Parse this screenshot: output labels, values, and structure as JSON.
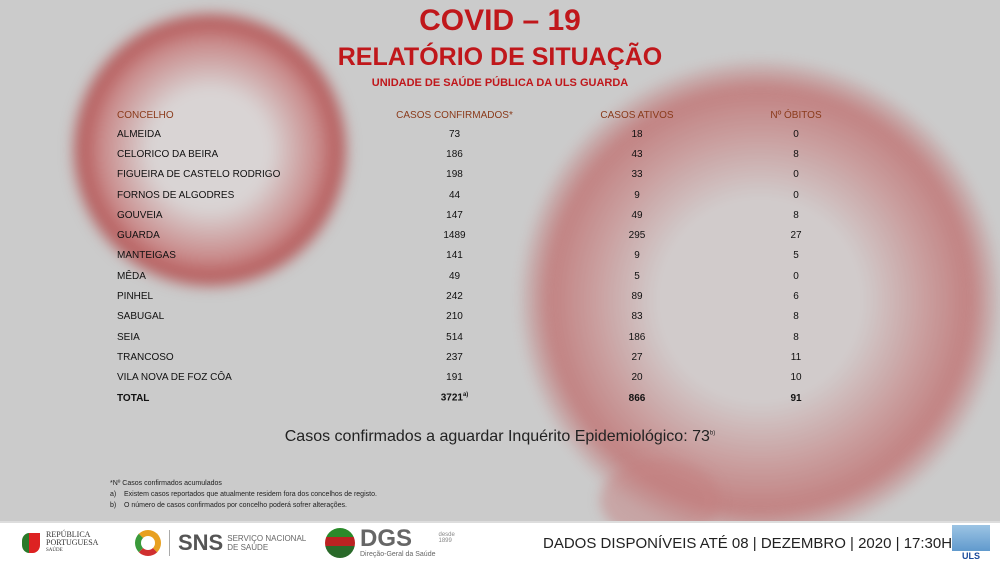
{
  "title": "COVID – 19",
  "subtitle": "RELATÓRIO DE SITUAÇÃO",
  "unit": "UNIDADE DE SAÚDE PÚBLICA DA ULS GUARDA",
  "colors": {
    "accent": "#c0171b",
    "header_text": "#8a3a1a"
  },
  "table": {
    "headers": [
      "CONCELHO",
      "CASOS CONFIRMADOS*",
      "CASOS ATIVOS",
      "Nº ÓBITOS"
    ],
    "rows": [
      [
        "ALMEIDA",
        "73",
        "18",
        "0"
      ],
      [
        "CELORICO DA BEIRA",
        "186",
        "43",
        "8"
      ],
      [
        "FIGUEIRA DE CASTELO RODRIGO",
        "198",
        "33",
        "0"
      ],
      [
        "FORNOS DE ALGODRES",
        "44",
        "9",
        "0"
      ],
      [
        "GOUVEIA",
        "147",
        "49",
        "8"
      ],
      [
        "GUARDA",
        "1489",
        "295",
        "27"
      ],
      [
        "MANTEIGAS",
        "141",
        "9",
        "5"
      ],
      [
        "MÊDA",
        "49",
        "5",
        "0"
      ],
      [
        "PINHEL",
        "242",
        "89",
        "6"
      ],
      [
        "SABUGAL",
        "210",
        "83",
        "8"
      ],
      [
        "SEIA",
        "514",
        "186",
        "8"
      ],
      [
        "TRANCOSO",
        "237",
        "27",
        "11"
      ],
      [
        "VILA NOVA DE FOZ CÔA",
        "191",
        "20",
        "10"
      ]
    ],
    "total": {
      "label": "TOTAL",
      "confirmed": "3721",
      "confirmed_note": "a)",
      "active": "866",
      "deaths": "91"
    }
  },
  "pending": {
    "text": "Casos confirmados a aguardar Inquérito Epidemiológico: 73",
    "note": "b)"
  },
  "notes": [
    "*Nº Casos confirmados acumulados",
    "a)    Existem casos reportados que atualmente residem fora dos concelhos de registo.",
    "b)    O número de casos confirmados por concelho poderá sofrer alterações."
  ],
  "footer": {
    "republica": [
      "REPÚBLICA",
      "PORTUGUESA",
      "SAÚDE"
    ],
    "sns": "SNS",
    "sns_sub": [
      "SERVIÇO NACIONAL",
      "DE SAÚDE"
    ],
    "dgs": "DGS",
    "dgs_since": [
      "desde",
      "1899"
    ],
    "dgs_sub": "Direção-Geral da Saúde",
    "date": "DADOS DISPONÍVEIS ATÉ 08 | DEZEMBRO | 2020 | 17:30H",
    "uls": "ULS"
  }
}
